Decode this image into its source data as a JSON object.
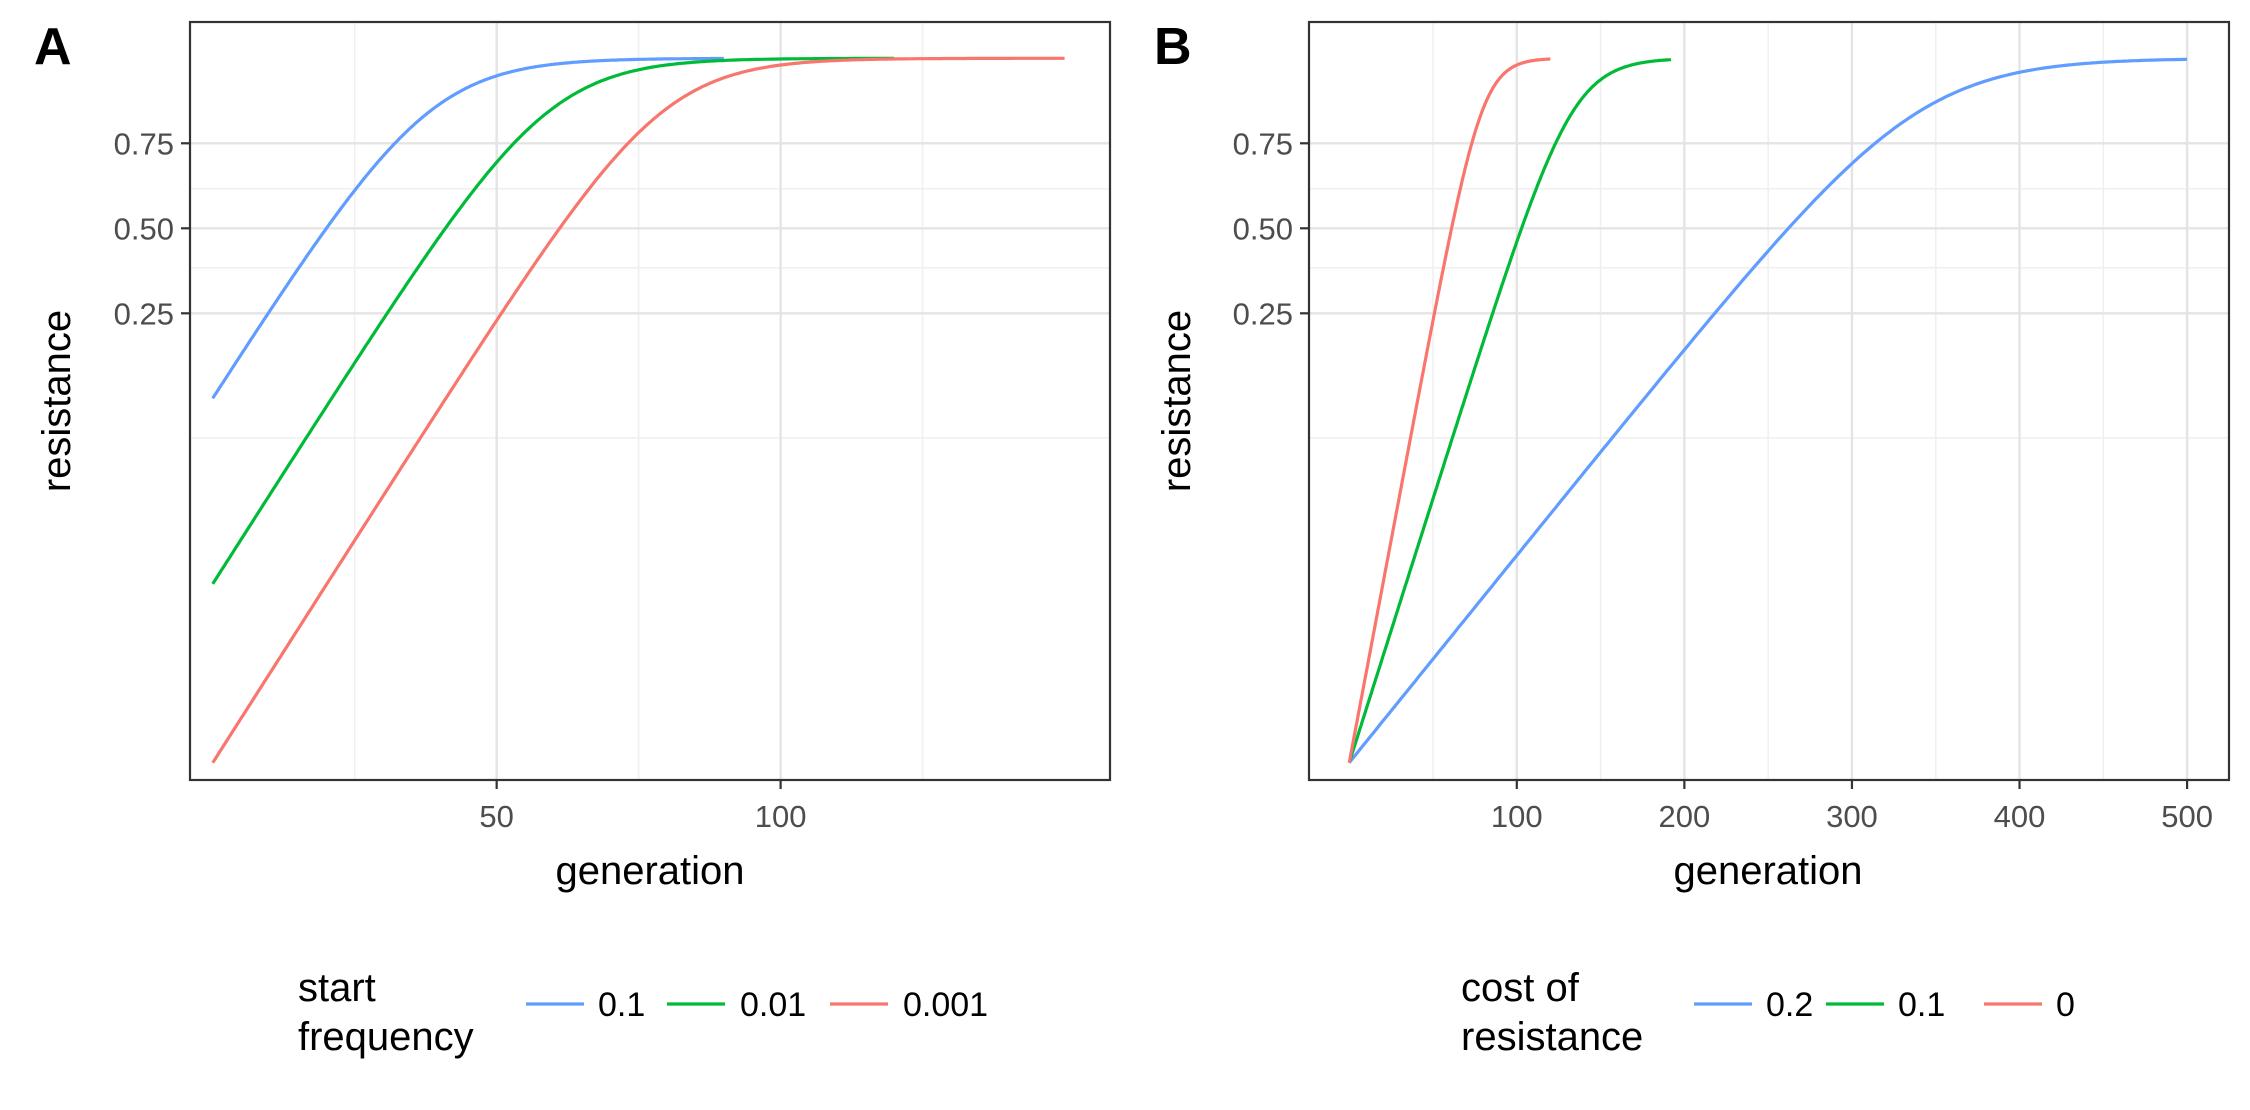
{
  "chart_data": [
    {
      "type": "line",
      "panel_label": "A",
      "xlabel": "generation",
      "ylabel": "resistance",
      "y_scale": "logit",
      "xlim": [
        -4,
        158
      ],
      "ylim": [
        0.0008,
        0.935
      ],
      "x_ticks": [
        50,
        100
      ],
      "x_minor_ticks": [
        25,
        75,
        125
      ],
      "y_ticks": [
        0.25,
        0.5,
        0.75
      ],
      "y_minor_ticks": [
        0.0625,
        0.375,
        0.625
      ],
      "grid": true,
      "legend": {
        "title": [
          "start",
          "frequency"
        ],
        "position": "bottom",
        "entries": [
          "0.1",
          "0.01",
          "0.001"
        ]
      },
      "series": [
        {
          "name": "0.1",
          "color": "#619CFF",
          "start_value": 0.1,
          "x_end": 90,
          "rate": 0.115,
          "plateau": 0.9
        },
        {
          "name": "0.01",
          "color": "#00BA38",
          "start_value": 0.01,
          "x_end": 120,
          "rate": 0.115,
          "plateau": 0.9
        },
        {
          "name": "0.001",
          "color": "#F8766D",
          "start_value": 0.001,
          "x_end": 150,
          "rate": 0.115,
          "plateau": 0.9
        }
      ]
    },
    {
      "type": "line",
      "panel_label": "B",
      "xlabel": "generation",
      "ylabel": "resistance",
      "y_scale": "logit",
      "xlim": [
        -24,
        525
      ],
      "ylim": [
        0.0008,
        0.935
      ],
      "x_ticks": [
        100,
        200,
        300,
        400,
        500
      ],
      "x_minor_ticks": [
        50,
        150,
        250,
        350,
        450
      ],
      "y_ticks": [
        0.25,
        0.5,
        0.75
      ],
      "y_minor_ticks": [
        0.0625,
        0.375,
        0.625
      ],
      "grid": true,
      "legend": {
        "title": [
          "cost of",
          "resistance"
        ],
        "position": "bottom",
        "entries": [
          "0.2",
          "0.1",
          "0"
        ]
      },
      "series": [
        {
          "name": "0.2",
          "color": "#619CFF",
          "start_value": 0.001,
          "x_end": 500,
          "rate": 0.0268,
          "plateau": 0.9
        },
        {
          "name": "0.1",
          "color": "#00BA38",
          "start_value": 0.001,
          "x_end": 192,
          "rate": 0.0683,
          "plateau": 0.9
        },
        {
          "name": "0",
          "color": "#F8766D",
          "start_value": 0.001,
          "x_end": 120,
          "rate": 0.115,
          "plateau": 0.9
        }
      ]
    }
  ]
}
